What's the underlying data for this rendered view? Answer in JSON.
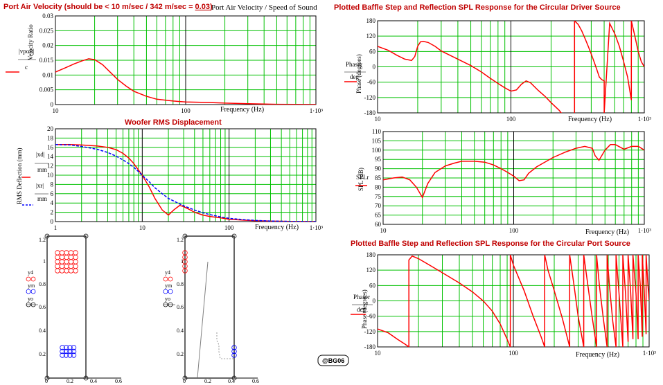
{
  "chart_data": [
    {
      "id": "port",
      "type": "line",
      "title": "Port Air Velocity (should be < 10 m/sec / 342 m/sec = 0.03)",
      "title_main": "Port Air Velocity (should be < 10 m/sec / 342 m/sec = ",
      "title_num": "0.03",
      "title_close": ")",
      "subtitle": "Port Air Velocity / Speed of Sound",
      "xlabel": "Frequency (Hz)",
      "ylabel": "Velocity Ratio",
      "legend": [
        "|vport|",
        "c"
      ],
      "x_scale": "log",
      "xlim": [
        10,
        1000
      ],
      "ylim": [
        0,
        0.03
      ],
      "xticks": [
        "10",
        "100",
        "1·10³"
      ],
      "yticks": [
        "0",
        "0.005",
        "0.01",
        "0.015",
        "0.02",
        "0.025",
        "0.03"
      ],
      "series": [
        {
          "color": "#ff0000",
          "dash": false,
          "x": [
            10,
            12,
            14,
            16,
            18,
            20,
            23,
            26,
            30,
            35,
            40,
            50,
            60,
            80,
            100,
            150,
            200,
            300,
            500,
            700,
            1000
          ],
          "y": [
            0.011,
            0.0125,
            0.0138,
            0.0148,
            0.0155,
            0.0152,
            0.0135,
            0.0112,
            0.0085,
            0.0062,
            0.0045,
            0.0028,
            0.0018,
            0.0012,
            0.0009,
            0.0007,
            0.0005,
            0.0003,
            0.0001,
            5e-05,
            2e-05
          ]
        }
      ]
    },
    {
      "id": "woofer",
      "type": "line",
      "title": "Woofer RMS Displacement",
      "xlabel": "Frequency (Hz)",
      "ylabel": "RMS Deflection (mm)",
      "legend": [
        "|xd|",
        "mm",
        "|xr|",
        "mm"
      ],
      "x_scale": "log",
      "xlim": [
        1,
        1000
      ],
      "ylim": [
        0,
        20
      ],
      "xticks": [
        "1",
        "10",
        "100",
        "1·10³"
      ],
      "yticks": [
        "0",
        "2",
        "4",
        "6",
        "8",
        "10",
        "12",
        "14",
        "16",
        "18",
        "20"
      ],
      "series": [
        {
          "color": "#ff0000",
          "dash": false,
          "x": [
            1,
            1.5,
            2,
            3,
            4,
            5,
            6,
            7,
            8,
            10,
            12,
            14,
            17,
            20,
            23,
            27,
            30,
            35,
            40,
            50,
            60,
            80,
            100,
            150,
            200,
            300,
            500,
            1000
          ],
          "y": [
            16.6,
            16.6,
            16.5,
            16.3,
            16.0,
            15.5,
            14.7,
            13.7,
            12.5,
            10.0,
            7.5,
            5.0,
            2.5,
            1.4,
            2.5,
            3.5,
            3.2,
            2.6,
            2.0,
            1.4,
            1.1,
            0.8,
            0.5,
            0.3,
            0.2,
            0.1,
            0.05,
            0.02
          ]
        },
        {
          "color": "#0000ff",
          "dash": true,
          "x": [
            1,
            1.5,
            2,
            3,
            4,
            5,
            6,
            7,
            8,
            10,
            12,
            14,
            17,
            20,
            25,
            30,
            40,
            50,
            60,
            80,
            100,
            150,
            200,
            300,
            500,
            1000
          ],
          "y": [
            16.6,
            16.5,
            16.2,
            15.6,
            14.9,
            14.1,
            13.3,
            12.5,
            11.7,
            10.0,
            8.6,
            7.3,
            6.0,
            5.0,
            4.1,
            3.4,
            2.5,
            1.9,
            1.5,
            1.0,
            0.7,
            0.4,
            0.25,
            0.12,
            0.05,
            0.02
          ]
        }
      ]
    },
    {
      "id": "driver_phase",
      "type": "line",
      "title": "Plotted Baffle Step and Reflection SPL Response for the Circular Driver Source",
      "xlabel": "Frequency (Hz)",
      "ylabel": "Phase (degrees)",
      "legend": [
        "Phaser",
        "deg"
      ],
      "x_scale": "log",
      "xlim": [
        10,
        1000
      ],
      "ylim": [
        -180,
        180
      ],
      "xticks": [
        "10",
        "100",
        "1·10³"
      ],
      "yticks": [
        "-180",
        "-120",
        "-60",
        "0",
        "60",
        "120",
        "180"
      ],
      "series": [
        {
          "color": "#ff0000",
          "dash": false,
          "x": [
            10,
            12,
            14,
            16,
            18,
            19,
            20,
            21,
            22,
            24,
            27,
            30,
            40,
            50,
            60,
            70,
            80,
            90,
            100,
            110,
            120,
            130,
            140,
            160,
            180,
            200,
            230,
            260,
            300,
            300,
            320,
            340,
            360,
            380,
            400,
            420,
            440,
            460,
            480,
            500,
            500,
            550,
            600,
            650,
            700,
            750,
            800,
            800,
            850,
            900,
            950,
            1000
          ],
          "y": [
            80,
            65,
            45,
            30,
            25,
            40,
            80,
            98,
            100,
            95,
            80,
            62,
            30,
            5,
            -20,
            -45,
            -65,
            -82,
            -95,
            -90,
            -68,
            -55,
            -62,
            -92,
            -115,
            -140,
            -170,
            -205,
            -240,
            180,
            165,
            140,
            110,
            80,
            50,
            20,
            -10,
            -40,
            -50,
            -55,
            -180,
            170,
            130,
            80,
            20,
            -40,
            -130,
            180,
            120,
            60,
            20,
            0
          ]
        }
      ]
    },
    {
      "id": "driver_spl",
      "type": "line",
      "xlabel": "Frequency (Hz)",
      "ylabel": "SPL (dB)",
      "legend": [
        "SPLr"
      ],
      "x_scale": "log",
      "xlim": [
        10,
        1000
      ],
      "ylim": [
        60,
        110
      ],
      "xticks": [
        "10",
        "100",
        "1·10³"
      ],
      "yticks": [
        "60",
        "65",
        "70",
        "75",
        "80",
        "85",
        "90",
        "95",
        "100",
        "105",
        "110"
      ],
      "series": [
        {
          "color": "#ff0000",
          "dash": false,
          "x": [
            10,
            12,
            14,
            16,
            18,
            20,
            22,
            25,
            30,
            35,
            40,
            50,
            60,
            70,
            80,
            90,
            100,
            110,
            120,
            130,
            150,
            200,
            250,
            300,
            350,
            400,
            420,
            450,
            500,
            550,
            600,
            700,
            800,
            900,
            1000
          ],
          "y": [
            84,
            85,
            85.5,
            84,
            80,
            74.5,
            82,
            88,
            91.5,
            93,
            94,
            94,
            93.5,
            92,
            90,
            88,
            86,
            83.5,
            84,
            87.5,
            91,
            96,
            99,
            101,
            102,
            101,
            97,
            94.5,
            100,
            103,
            103,
            100.5,
            102,
            102,
            100
          ]
        }
      ]
    },
    {
      "id": "port_phase",
      "type": "line",
      "title": "Plotted Baffle Step and Reflection SPL Response for the Circular Port Source",
      "xlabel": "Frequency (Hz)",
      "ylabel": "Phase (degrees)",
      "legend": [
        "Phaser",
        "deg"
      ],
      "x_scale": "log",
      "xlim": [
        10,
        1000
      ],
      "ylim": [
        -180,
        180
      ],
      "xticks": [
        "10",
        "100",
        "1·10³"
      ],
      "yticks": [
        "-180",
        "-120",
        "-60",
        "0",
        "60",
        "120",
        "180"
      ],
      "series": [
        {
          "color": "#ff0000",
          "dash": false,
          "x": [
            10,
            12,
            14,
            16,
            17,
            17,
            18,
            20,
            25,
            30,
            40,
            50,
            60,
            70,
            80,
            90,
            95,
            95,
            100,
            120,
            140,
            160,
            170,
            170,
            180,
            200,
            230,
            260,
            260,
            280,
            300,
            330,
            330,
            350,
            380,
            410,
            410,
            430,
            460,
            490,
            490,
            510,
            540,
            570,
            570,
            600,
            640,
            640,
            670,
            700,
            700,
            730,
            760,
            760,
            800,
            830,
            830,
            860,
            890,
            890,
            920,
            950,
            950,
            980,
            1000
          ],
          "y": [
            -110,
            -125,
            -150,
            -170,
            -180,
            160,
            175,
            165,
            135,
            110,
            70,
            35,
            0,
            -40,
            -90,
            -150,
            -180,
            180,
            140,
            40,
            -60,
            -140,
            -180,
            180,
            120,
            40,
            -70,
            -180,
            180,
            60,
            -60,
            -180,
            180,
            80,
            -60,
            -180,
            180,
            60,
            -70,
            -180,
            180,
            60,
            -80,
            -180,
            180,
            30,
            -180,
            180,
            30,
            -160,
            180,
            40,
            -150,
            180,
            30,
            -150,
            180,
            60,
            -140,
            180,
            40,
            -130,
            180,
            60,
            0
          ]
        }
      ]
    }
  ],
  "geometry_plots": [
    {
      "id": "driver_geom",
      "xticks": [
        "0",
        "0.2",
        "0.4",
        "0.6"
      ],
      "yticks": [
        "0.2",
        "0.4",
        "0.6",
        "0.8",
        "1",
        "1.2"
      ],
      "labels": [
        "y4",
        "ym",
        "yo"
      ]
    },
    {
      "id": "port_geom",
      "xticks": [
        "0",
        "0.2",
        "0.4",
        "0.6"
      ],
      "yticks": [
        "0.2",
        "0.4",
        "0.6",
        "0.8",
        "1",
        "1.2"
      ],
      "labels": [
        "y4",
        "ym",
        "yo"
      ]
    }
  ],
  "signature": "@BG06"
}
